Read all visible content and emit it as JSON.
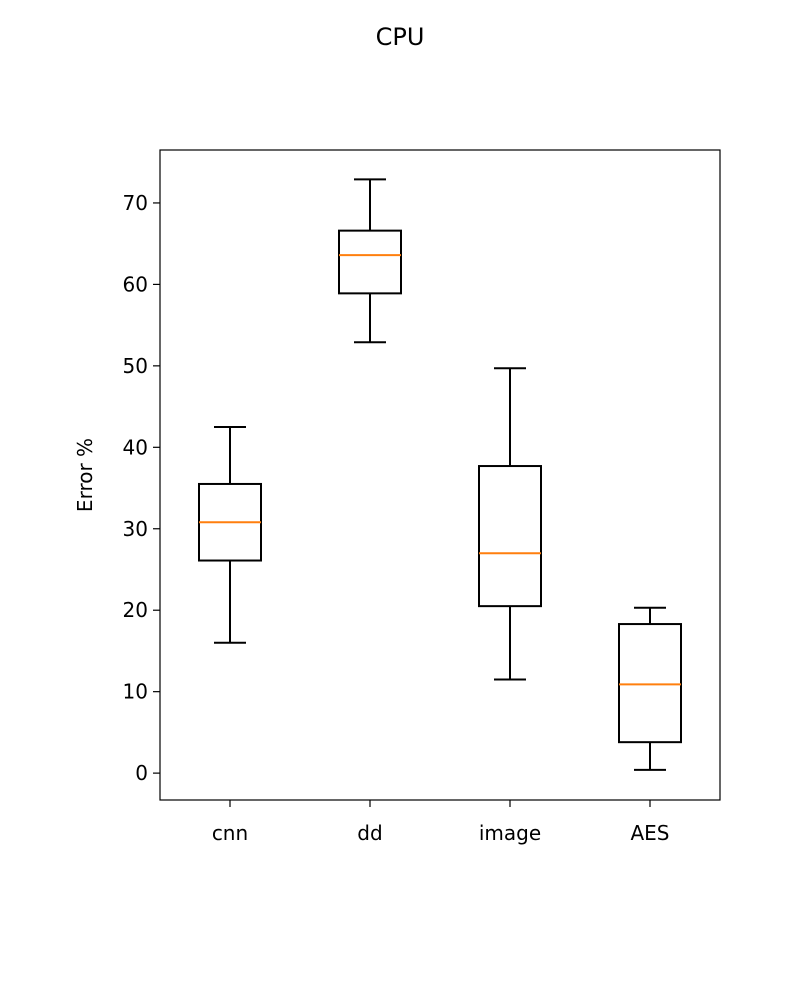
{
  "chart_data": {
    "type": "boxplot",
    "title": "CPU",
    "xlabel": "",
    "ylabel": "Error %",
    "ylim": [
      -3.3,
      76.5
    ],
    "yticks": [
      0,
      10,
      20,
      30,
      40,
      50,
      60,
      70
    ],
    "categories": [
      "cnn",
      "dd",
      "image",
      "AES"
    ],
    "boxes": [
      {
        "category": "cnn",
        "whisker_low": 16.0,
        "q1": 26.1,
        "median": 30.8,
        "q3": 35.5,
        "whisker_high": 42.5
      },
      {
        "category": "dd",
        "whisker_low": 52.9,
        "q1": 58.9,
        "median": 63.6,
        "q3": 66.6,
        "whisker_high": 72.9
      },
      {
        "category": "image",
        "whisker_low": 11.5,
        "q1": 20.5,
        "median": 27.0,
        "q3": 37.7,
        "whisker_high": 49.7
      },
      {
        "category": "AES",
        "whisker_low": 0.4,
        "q1": 3.8,
        "median": 10.9,
        "q3": 18.3,
        "whisker_high": 20.3
      }
    ],
    "grid": false,
    "colors": {
      "box": "#000000",
      "median": "#ff7f0e",
      "axes": "#000000",
      "background": "#ffffff"
    }
  }
}
